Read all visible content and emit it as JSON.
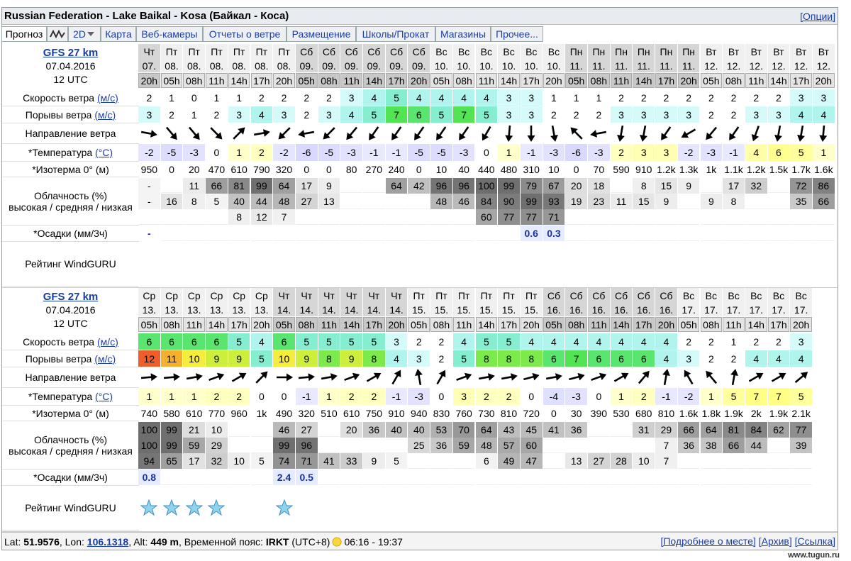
{
  "title": "Russian Federation - Lake Baikal - Kosa (Байкал - Коса)",
  "options": "[Опции]",
  "tabs": [
    "Прогноз",
    "2D",
    "Карта",
    "Веб-камеры",
    "Отчеты о ветре",
    "Размещение",
    "Школы/Прокат",
    "Магазины",
    "Прочее..."
  ],
  "row_labels": {
    "speed": "Скорость ветра",
    "speed_unit": "(м/с)",
    "gusts": "Порывы ветра",
    "gusts_unit": "(м/с)",
    "direction": "Направление ветра",
    "temperature": "*Температура",
    "temperature_unit": "(°C)",
    "isotherm": "*Изотерма 0° (м)",
    "cloud": "Облачность (%)",
    "cloud_levels": "высокая / средняя / низкая",
    "precip": "*Осадки (мм/3ч)",
    "rating": "Рейтинг WindGURU"
  },
  "blocks": [
    {
      "model": "GFS 27 km",
      "date": "07.04.2016",
      "time": "12 UTC",
      "days": [
        "Чт",
        "Пт",
        "Пт",
        "Пт",
        "Пт",
        "Пт",
        "Пт",
        "Сб",
        "Сб",
        "Сб",
        "Сб",
        "Сб",
        "Сб",
        "Вс",
        "Вс",
        "Вс",
        "Вс",
        "Вс",
        "Вс",
        "Пн",
        "Пн",
        "Пн",
        "Пн",
        "Пн",
        "Пн",
        "Вт",
        "Вт",
        "Вт",
        "Вт",
        "Вт",
        "Вт"
      ],
      "dates": [
        "07.",
        "08.",
        "08.",
        "08.",
        "08.",
        "08.",
        "08.",
        "09.",
        "09.",
        "09.",
        "09.",
        "09.",
        "09.",
        "10.",
        "10.",
        "10.",
        "10.",
        "10.",
        "10.",
        "11.",
        "11.",
        "11.",
        "11.",
        "11.",
        "11.",
        "12.",
        "12.",
        "12.",
        "12.",
        "12.",
        "12."
      ],
      "hours": [
        "20h",
        "05h",
        "08h",
        "11h",
        "14h",
        "17h",
        "20h",
        "05h",
        "08h",
        "11h",
        "14h",
        "17h",
        "20h",
        "05h",
        "08h",
        "11h",
        "14h",
        "17h",
        "20h",
        "05h",
        "08h",
        "11h",
        "14h",
        "17h",
        "20h",
        "05h",
        "08h",
        "11h",
        "14h",
        "17h",
        "20h"
      ],
      "speed": [
        2,
        1,
        0,
        1,
        1,
        2,
        2,
        2,
        2,
        3,
        4,
        5,
        4,
        4,
        4,
        4,
        3,
        3,
        1,
        1,
        1,
        2,
        2,
        2,
        2,
        2,
        2,
        2,
        2,
        3,
        3
      ],
      "gusts": [
        3,
        2,
        1,
        2,
        3,
        4,
        3,
        2,
        3,
        4,
        5,
        7,
        6,
        5,
        7,
        5,
        3,
        3,
        2,
        2,
        2,
        3,
        3,
        3,
        3,
        2,
        2,
        3,
        3,
        4,
        4
      ],
      "direction": [
        100,
        140,
        140,
        135,
        45,
        80,
        225,
        260,
        225,
        220,
        215,
        215,
        215,
        215,
        215,
        210,
        185,
        180,
        170,
        315,
        260,
        190,
        190,
        215,
        240,
        220,
        215,
        200,
        190,
        190,
        185
      ],
      "temperature": [
        -2,
        -5,
        -3,
        0,
        1,
        2,
        -2,
        -6,
        -5,
        -3,
        -1,
        -1,
        -5,
        -5,
        -3,
        0,
        1,
        -1,
        -3,
        -6,
        -3,
        2,
        3,
        3,
        -2,
        -3,
        -1,
        4,
        6,
        5,
        1
      ],
      "isotherm": [
        950,
        0,
        20,
        470,
        610,
        790,
        320,
        0,
        0,
        80,
        270,
        240,
        0,
        10,
        40,
        440,
        480,
        310,
        10,
        0,
        70,
        590,
        910,
        "1.2k",
        "1.3k",
        "1k",
        "1.1k",
        "1.2k",
        "1.5k",
        "1.7k",
        "1.6k"
      ],
      "cloud_high": [
        "-",
        null,
        11,
        66,
        81,
        99,
        64,
        17,
        9,
        null,
        null,
        64,
        42,
        96,
        96,
        100,
        99,
        79,
        67,
        20,
        18,
        null,
        8,
        15,
        9,
        null,
        17,
        32,
        null,
        72,
        86
      ],
      "cloud_mid": [
        "-",
        16,
        8,
        5,
        40,
        44,
        48,
        27,
        13,
        null,
        null,
        null,
        null,
        48,
        46,
        84,
        90,
        99,
        93,
        19,
        23,
        11,
        15,
        9,
        null,
        9,
        8,
        null,
        null,
        35,
        66
      ],
      "cloud_low": [
        null,
        null,
        null,
        null,
        8,
        12,
        7,
        null,
        null,
        null,
        null,
        null,
        null,
        null,
        null,
        60,
        77,
        77,
        71,
        null,
        null,
        null,
        null,
        null,
        null,
        null,
        null,
        null,
        null,
        null,
        null
      ],
      "precip": [
        "-",
        null,
        null,
        null,
        null,
        null,
        null,
        null,
        null,
        null,
        null,
        null,
        null,
        null,
        null,
        null,
        null,
        0.6,
        0.3,
        null,
        null,
        null,
        null,
        null,
        null,
        null,
        null,
        null,
        null,
        null,
        null
      ]
    },
    {
      "model": "GFS 27 km",
      "date": "07.04.2016",
      "time": "12 UTC",
      "days": [
        "Ср",
        "Ср",
        "Ср",
        "Ср",
        "Ср",
        "Ср",
        "Чт",
        "Чт",
        "Чт",
        "Чт",
        "Чт",
        "Чт",
        "Пт",
        "Пт",
        "Пт",
        "Пт",
        "Пт",
        "Пт",
        "Сб",
        "Сб",
        "Сб",
        "Сб",
        "Сб",
        "Сб",
        "Вс",
        "Вс",
        "Вс",
        "Вс",
        "Вс",
        "Вс"
      ],
      "dates": [
        "13.",
        "13.",
        "13.",
        "13.",
        "13.",
        "13.",
        "14.",
        "14.",
        "14.",
        "14.",
        "14.",
        "14.",
        "15.",
        "15.",
        "15.",
        "15.",
        "15.",
        "15.",
        "16.",
        "16.",
        "16.",
        "16.",
        "16.",
        "16.",
        "17.",
        "17.",
        "17.",
        "17.",
        "17.",
        "17."
      ],
      "hours": [
        "05h",
        "08h",
        "11h",
        "14h",
        "17h",
        "20h",
        "05h",
        "08h",
        "11h",
        "14h",
        "17h",
        "20h",
        "05h",
        "08h",
        "11h",
        "14h",
        "17h",
        "20h",
        "05h",
        "08h",
        "11h",
        "14h",
        "17h",
        "20h",
        "05h",
        "08h",
        "11h",
        "14h",
        "17h",
        "20h"
      ],
      "speed": [
        6,
        6,
        6,
        6,
        5,
        4,
        6,
        5,
        5,
        5,
        5,
        3,
        2,
        2,
        4,
        5,
        5,
        4,
        4,
        4,
        4,
        4,
        4,
        4,
        2,
        2,
        1,
        2,
        2,
        3
      ],
      "gusts": [
        12,
        11,
        10,
        9,
        9,
        5,
        10,
        9,
        8,
        9,
        8,
        4,
        3,
        2,
        5,
        8,
        8,
        8,
        6,
        7,
        6,
        6,
        6,
        4,
        3,
        2,
        2,
        4,
        4,
        4
      ],
      "direction": [
        85,
        85,
        80,
        70,
        60,
        45,
        90,
        85,
        80,
        70,
        60,
        30,
        350,
        30,
        70,
        80,
        80,
        75,
        80,
        75,
        70,
        60,
        40,
        10,
        330,
        320,
        10,
        60,
        60,
        50
      ],
      "temperature": [
        1,
        1,
        1,
        2,
        2,
        0,
        0,
        -1,
        1,
        2,
        2,
        -1,
        -3,
        0,
        3,
        2,
        2,
        0,
        -4,
        -3,
        0,
        1,
        2,
        -1,
        -2,
        1,
        5,
        7,
        7,
        5
      ],
      "isotherm": [
        740,
        580,
        610,
        770,
        960,
        "1k",
        490,
        320,
        510,
        610,
        750,
        910,
        940,
        830,
        760,
        730,
        810,
        720,
        0,
        30,
        390,
        530,
        680,
        810,
        "1.6k",
        "1.8k",
        "1.9k",
        "2k",
        "1.9k",
        "2.1k"
      ],
      "cloud_high": [
        100,
        99,
        21,
        10,
        null,
        null,
        46,
        27,
        null,
        20,
        36,
        40,
        40,
        53,
        70,
        64,
        43,
        45,
        41,
        36,
        null,
        null,
        31,
        29,
        66,
        64,
        81,
        84,
        62,
        77
      ],
      "cloud_mid": [
        100,
        99,
        59,
        29,
        null,
        null,
        99,
        96,
        null,
        null,
        null,
        null,
        25,
        36,
        59,
        48,
        57,
        60,
        null,
        null,
        null,
        null,
        null,
        7,
        36,
        38,
        66,
        44,
        null,
        39
      ],
      "cloud_low": [
        94,
        65,
        17,
        32,
        10,
        5,
        74,
        71,
        41,
        33,
        9,
        5,
        null,
        null,
        null,
        6,
        49,
        47,
        null,
        13,
        27,
        28,
        10,
        7,
        null,
        null,
        null,
        null,
        null,
        null
      ],
      "precip": [
        0.8,
        null,
        null,
        null,
        null,
        null,
        2.4,
        0.5,
        null,
        null,
        null,
        null,
        null,
        null,
        null,
        null,
        null,
        null,
        null,
        null,
        null,
        null,
        null,
        null,
        null,
        null,
        null,
        null,
        null,
        null
      ],
      "rating": [
        1,
        1,
        1,
        1,
        null,
        null,
        1,
        null,
        null,
        null,
        null,
        null,
        null,
        null,
        null,
        null,
        null,
        null,
        null,
        null,
        null,
        null,
        null,
        null,
        null,
        null,
        null,
        null,
        null,
        null
      ]
    }
  ],
  "footer": {
    "lat_label": "Lat:",
    "lat": "51.9576",
    "lon_label": ", Lon:",
    "lon": "106.1318",
    "alt_label": ", Alt:",
    "alt": "449 m",
    "tz_label": ", Временной пояс:",
    "tz": "IRKT",
    "utc": "(UTC+8)",
    "sun": "06:16 - 19:37",
    "links": [
      "[Подробнее о месте]",
      "[Архив]",
      "[Ссылка]"
    ]
  },
  "watermark": "www.tugun.ru"
}
